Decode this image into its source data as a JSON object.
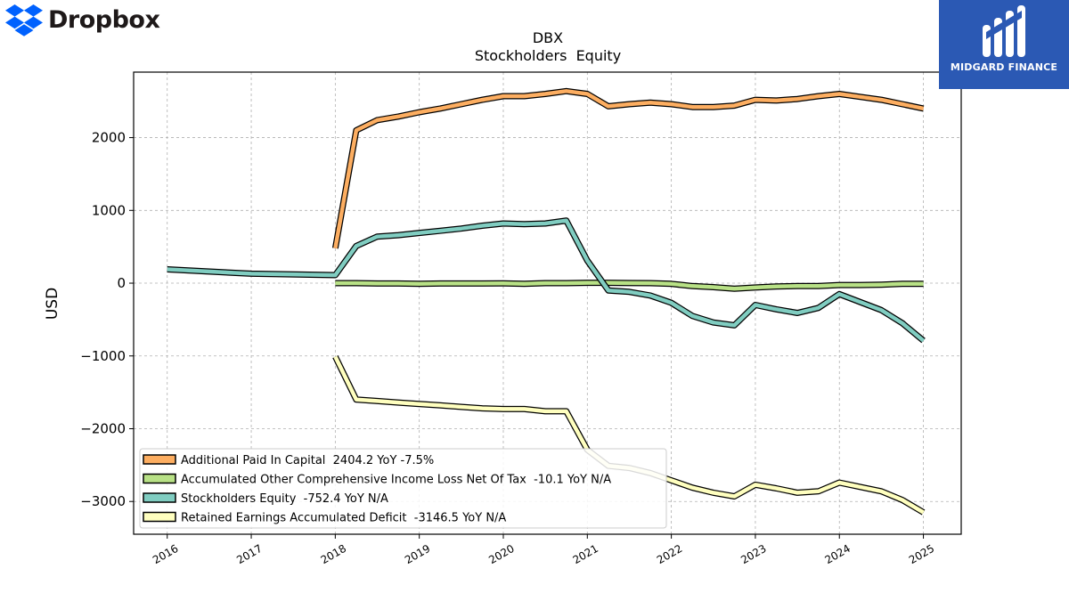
{
  "brand": {
    "name": "Dropbox",
    "icon": "dropbox-logo-icon",
    "color": "#0061fe"
  },
  "watermark": {
    "name": "MIDGARD FINANCE",
    "icon": "midgard-logo-icon",
    "bg": "#2b59b4"
  },
  "chart_data": {
    "type": "line",
    "title": "DBX",
    "subtitle": "Stockholders  Equity",
    "xlabel": "",
    "ylabel": "USD",
    "xlim": [
      2015.6,
      2025.45
    ],
    "ylim": [
      -3450,
      2900
    ],
    "x_ticks": [
      2016,
      2017,
      2018,
      2019,
      2020,
      2021,
      2022,
      2023,
      2024,
      2025
    ],
    "y_ticks": [
      -3000,
      -2000,
      -1000,
      0,
      1000,
      2000
    ],
    "y_tick_labels": [
      "−3000",
      "−2000",
      "−1000",
      "0",
      "1000",
      "2000"
    ],
    "grid": true,
    "legend_position": "lower-left",
    "series": [
      {
        "name": "Additional Paid In Capital  2404.2 YoY -7.5%",
        "color": "#fdae61",
        "x": [
          2018.0,
          2018.25,
          2018.5,
          2018.75,
          2019.0,
          2019.25,
          2019.5,
          2019.75,
          2020.0,
          2020.25,
          2020.5,
          2020.75,
          2021.0,
          2021.25,
          2021.5,
          2021.75,
          2022.0,
          2022.25,
          2022.5,
          2022.75,
          2023.0,
          2023.25,
          2023.5,
          2023.75,
          2024.0,
          2024.25,
          2024.5,
          2024.75,
          2025.0
        ],
        "y": [
          480,
          2100,
          2240,
          2290,
          2350,
          2400,
          2460,
          2520,
          2570,
          2570,
          2600,
          2640,
          2600,
          2430,
          2460,
          2480,
          2460,
          2420,
          2420,
          2440,
          2520,
          2510,
          2530,
          2570,
          2600,
          2560,
          2520,
          2460,
          2400
        ]
      },
      {
        "name": "Accumulated Other Comprehensive Income Loss Net Of Tax  -10.1 YoY N/A",
        "color": "#b8e186",
        "x": [
          2018.0,
          2018.25,
          2018.5,
          2018.75,
          2019.0,
          2019.25,
          2019.5,
          2019.75,
          2020.0,
          2020.25,
          2020.5,
          2020.75,
          2021.0,
          2021.25,
          2021.5,
          2021.75,
          2022.0,
          2022.25,
          2022.5,
          2022.75,
          2023.0,
          2023.25,
          2023.5,
          2023.75,
          2024.0,
          2024.25,
          2024.5,
          2024.75,
          2025.0
        ],
        "y": [
          0,
          0,
          -5,
          -5,
          -8,
          -5,
          -5,
          -5,
          -3,
          -8,
          0,
          0,
          5,
          5,
          2,
          0,
          -10,
          -40,
          -55,
          -75,
          -60,
          -45,
          -40,
          -40,
          -25,
          -25,
          -20,
          -10,
          -10
        ]
      },
      {
        "name": "Stockholders Equity  -752.4 YoY N/A",
        "color": "#80cdc1",
        "x": [
          2016.0,
          2017.0,
          2018.0,
          2018.25,
          2018.5,
          2018.75,
          2019.0,
          2019.25,
          2019.5,
          2019.75,
          2020.0,
          2020.25,
          2020.5,
          2020.75,
          2021.0,
          2021.25,
          2021.5,
          2021.75,
          2022.0,
          2022.25,
          2022.5,
          2022.75,
          2023.0,
          2023.25,
          2023.5,
          2023.75,
          2024.0,
          2024.25,
          2024.5,
          2024.75,
          2025.0
        ],
        "y": [
          190,
          130,
          110,
          510,
          640,
          660,
          690,
          720,
          750,
          790,
          820,
          810,
          820,
          860,
          310,
          -100,
          -120,
          -170,
          -270,
          -450,
          -540,
          -580,
          -300,
          -360,
          -410,
          -340,
          -150,
          -260,
          -370,
          -550,
          -790
        ]
      },
      {
        "name": "Retained Earnings Accumulated Deficit  -3146.5 YoY N/A",
        "color": "#ffffbf",
        "x": [
          2018.0,
          2018.25,
          2018.5,
          2018.75,
          2019.0,
          2019.25,
          2019.5,
          2019.75,
          2020.0,
          2020.25,
          2020.5,
          2020.75,
          2021.0,
          2021.25,
          2021.5,
          2021.75,
          2022.0,
          2022.25,
          2022.5,
          2022.75,
          2023.0,
          2023.25,
          2023.5,
          2023.75,
          2024.0,
          2024.25,
          2024.5,
          2024.75,
          2025.0
        ],
        "y": [
          -1010,
          -1600,
          -1620,
          -1640,
          -1660,
          -1680,
          -1700,
          -1720,
          -1730,
          -1730,
          -1760,
          -1760,
          -2290,
          -2510,
          -2540,
          -2610,
          -2710,
          -2810,
          -2880,
          -2930,
          -2770,
          -2820,
          -2880,
          -2860,
          -2740,
          -2800,
          -2860,
          -2980,
          -3150
        ]
      }
    ]
  }
}
